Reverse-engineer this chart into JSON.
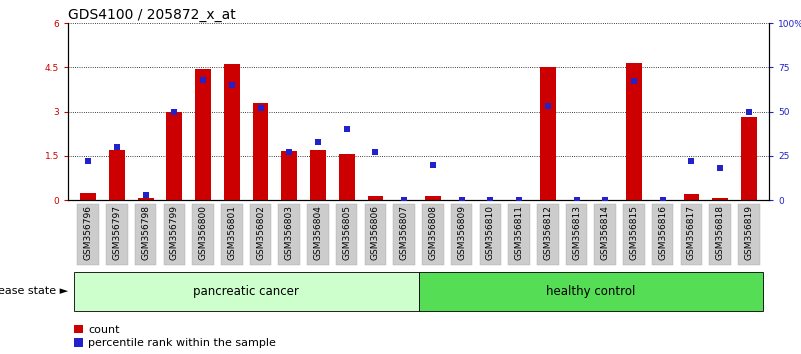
{
  "title": "GDS4100 / 205872_x_at",
  "samples": [
    "GSM356796",
    "GSM356797",
    "GSM356798",
    "GSM356799",
    "GSM356800",
    "GSM356801",
    "GSM356802",
    "GSM356803",
    "GSM356804",
    "GSM356805",
    "GSM356806",
    "GSM356807",
    "GSM356808",
    "GSM356809",
    "GSM356810",
    "GSM356811",
    "GSM356812",
    "GSM356813",
    "GSM356814",
    "GSM356815",
    "GSM356816",
    "GSM356817",
    "GSM356818",
    "GSM356819"
  ],
  "counts": [
    0.25,
    1.7,
    0.07,
    3.0,
    4.45,
    4.6,
    3.3,
    1.65,
    1.7,
    1.55,
    0.12,
    0.0,
    0.12,
    0.0,
    0.0,
    0.0,
    4.5,
    0.0,
    0.0,
    4.65,
    0.0,
    0.2,
    0.07,
    2.8
  ],
  "percentile_ranks": [
    22,
    30,
    3,
    50,
    68,
    65,
    52,
    27,
    33,
    40,
    27,
    0,
    20,
    0,
    0,
    0,
    53,
    0,
    0,
    67,
    0,
    22,
    18,
    50
  ],
  "disease_groups": [
    {
      "label": "pancreatic cancer",
      "start": 0,
      "end": 11,
      "color": "#ccffcc"
    },
    {
      "label": "healthy control",
      "start": 12,
      "end": 23,
      "color": "#55dd55"
    }
  ],
  "ylim_left": [
    0,
    6
  ],
  "ylim_right": [
    0,
    100
  ],
  "yticks_left": [
    0,
    1.5,
    3.0,
    4.5,
    6.0
  ],
  "yticks_right": [
    0,
    25,
    50,
    75,
    100
  ],
  "bar_color": "#cc0000",
  "dot_color": "#2222cc",
  "bar_width": 0.55,
  "title_fontsize": 10,
  "tick_fontsize": 6.5,
  "label_fontsize": 8,
  "group_label_fontsize": 8.5,
  "disease_state_label": "disease state",
  "xtick_bg": "#cccccc"
}
